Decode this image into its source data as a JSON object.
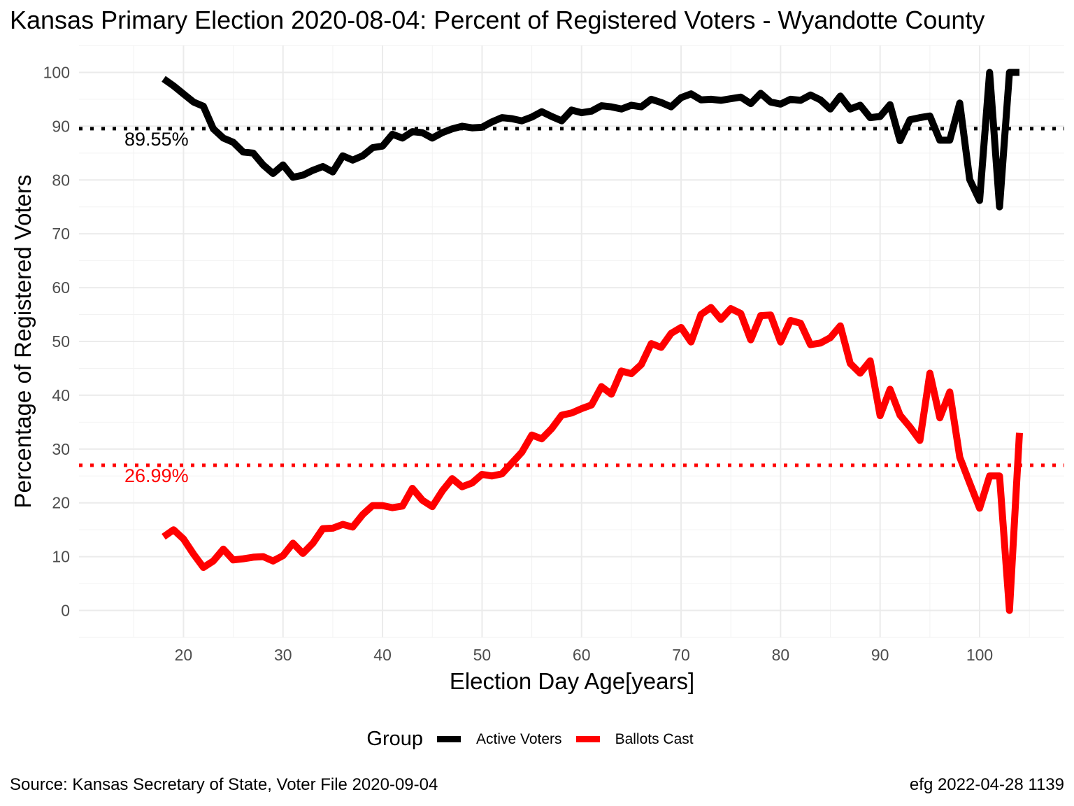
{
  "title": "Kansas Primary Election 2020-08-04:  Percent of Registered Voters - Wyandotte County",
  "caption_left": "Source:  Kansas Secretary of State, Voter File  2020-09-04",
  "caption_right": "efg 2022-04-28 1139",
  "chart_data": {
    "type": "line",
    "title": "Kansas Primary Election 2020-08-04:  Percent of Registered Voters - Wyandotte County",
    "xlabel": "Election Day Age[years]",
    "ylabel": "Percentage of Registered Voters",
    "xlim": [
      9.5,
      108.5
    ],
    "ylim": [
      -5,
      105
    ],
    "xticks": [
      20,
      30,
      40,
      50,
      60,
      70,
      80,
      90,
      100
    ],
    "yticks": [
      0,
      10,
      20,
      30,
      40,
      50,
      60,
      70,
      80,
      90,
      100
    ],
    "grid": true,
    "legend": {
      "title": "Group",
      "position": "bottom"
    },
    "x": [
      18,
      19,
      20,
      21,
      22,
      23,
      24,
      25,
      26,
      27,
      28,
      29,
      30,
      31,
      32,
      33,
      34,
      35,
      36,
      37,
      38,
      39,
      40,
      41,
      42,
      43,
      44,
      45,
      46,
      47,
      48,
      49,
      50,
      51,
      52,
      53,
      54,
      55,
      56,
      57,
      58,
      59,
      60,
      61,
      62,
      63,
      64,
      65,
      66,
      67,
      68,
      69,
      70,
      71,
      72,
      73,
      74,
      75,
      76,
      77,
      78,
      79,
      80,
      81,
      82,
      83,
      84,
      85,
      86,
      87,
      88,
      89,
      90,
      91,
      92,
      93,
      94,
      95,
      96,
      97,
      98,
      99,
      100,
      101,
      102,
      103,
      104
    ],
    "series": [
      {
        "name": "Active Voters",
        "color": "#000000",
        "values": [
          98.8,
          97.5,
          96,
          94.5,
          93.7,
          89.5,
          87.8,
          87,
          85.2,
          85,
          82.8,
          81.2,
          82.8,
          80.5,
          80.9,
          81.8,
          82.5,
          81.5,
          84.5,
          83.7,
          84.5,
          86,
          86.3,
          88.5,
          87.8,
          89,
          88.8,
          87.8,
          88.8,
          89.5,
          90,
          89.7,
          89.8,
          90.8,
          91.6,
          91.4,
          91,
          91.7,
          92.7,
          91.8,
          91,
          93,
          92.5,
          92.8,
          93.8,
          93.6,
          93.2,
          93.9,
          93.6,
          95,
          94.4,
          93.6,
          95.3,
          96,
          94.9,
          95,
          94.8,
          95.1,
          95.4,
          94.2,
          96.1,
          94.5,
          94.1,
          95,
          94.8,
          95.8,
          94.9,
          93.2,
          95.6,
          93.2,
          93.9,
          91.6,
          91.8,
          94,
          87.3,
          91.2,
          91.6,
          91.9,
          87.4,
          87.4,
          94.3,
          80.1,
          76.2,
          100,
          75,
          100,
          100
        ]
      },
      {
        "name": "Ballots Cast",
        "color": "#ff0000",
        "values": [
          13.7,
          15,
          13.3,
          10.5,
          8,
          9.2,
          11.4,
          9.4,
          9.6,
          9.9,
          10,
          9.2,
          10.2,
          12.5,
          10.6,
          12.5,
          15.2,
          15.3,
          16,
          15.5,
          17.8,
          19.5,
          19.5,
          19.1,
          19.4,
          22.7,
          20.5,
          19.3,
          22.2,
          24.5,
          23,
          23.7,
          25.3,
          25,
          25.4,
          27.4,
          29.4,
          32.6,
          31.9,
          33.8,
          36.3,
          36.7,
          37.5,
          38.2,
          41.6,
          40.2,
          44.5,
          44,
          45.7,
          49.6,
          48.9,
          51.5,
          52.6,
          49.9,
          55,
          56.3,
          54.1,
          56.1,
          55.2,
          50.3,
          54.8,
          54.9,
          49.9,
          53.9,
          53.4,
          49.4,
          49.7,
          50.7,
          52.9,
          45.9,
          44.1,
          46.4,
          36.2,
          41.1,
          36.3,
          34.1,
          31.6,
          44.1,
          35.8,
          40.6,
          28.5,
          23.7,
          19,
          25,
          25,
          0,
          33
        ]
      }
    ],
    "reference_lines": [
      {
        "series": "Active Voters",
        "value": 89.55,
        "label": "89.55%",
        "color": "#000000",
        "style": "dotted"
      },
      {
        "series": "Ballots Cast",
        "value": 26.99,
        "label": "26.99%",
        "color": "#ff0000",
        "style": "dotted"
      }
    ]
  }
}
